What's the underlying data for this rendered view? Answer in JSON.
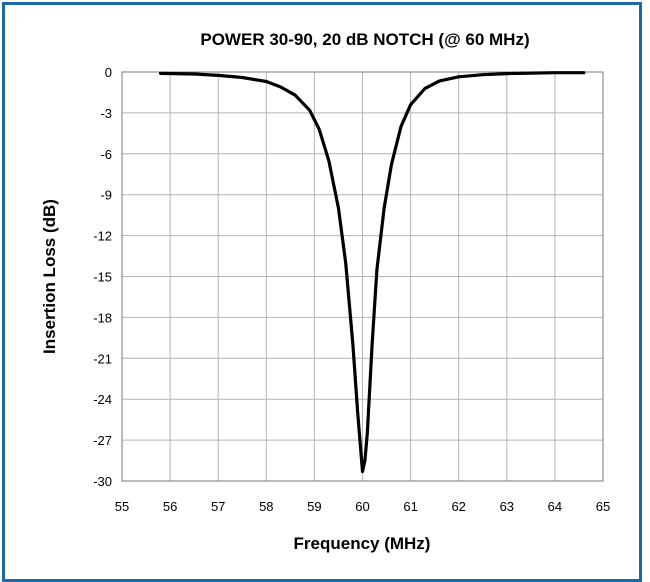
{
  "chart_data": {
    "type": "line",
    "title": "POWER 30-90, 20 dB NOTCH (@ 60 MHz)",
    "xlabel": "Frequency (MHz)",
    "ylabel": "Insertion Loss (dB)",
    "xlim": [
      55,
      65
    ],
    "ylim": [
      -30,
      0
    ],
    "xticks": [
      55,
      56,
      57,
      58,
      59,
      60,
      61,
      62,
      63,
      64,
      65
    ],
    "yticks": [
      0,
      -3,
      -6,
      -9,
      -12,
      -15,
      -18,
      -21,
      -24,
      -27,
      -30
    ],
    "grid": true,
    "series": [
      {
        "x": [
          55.8,
          56.5,
          57.0,
          57.5,
          58.0,
          58.3,
          58.6,
          58.9,
          59.1,
          59.3,
          59.5,
          59.65,
          59.8,
          59.9,
          60.0,
          60.05,
          60.1,
          60.2,
          60.3,
          60.45,
          60.6,
          60.8,
          61.0,
          61.3,
          61.6,
          62.0,
          62.5,
          63.0,
          63.5,
          64.0,
          64.6
        ],
        "y": [
          -0.1,
          -0.15,
          -0.25,
          -0.4,
          -0.7,
          -1.1,
          -1.7,
          -2.8,
          -4.2,
          -6.5,
          -10.0,
          -14.0,
          -20.0,
          -25.0,
          -29.3,
          -28.5,
          -26.5,
          -20.0,
          -14.5,
          -10.0,
          -6.8,
          -4.0,
          -2.4,
          -1.2,
          -0.65,
          -0.35,
          -0.2,
          -0.12,
          -0.08,
          -0.05,
          -0.05
        ],
        "color": "#000000"
      }
    ]
  }
}
